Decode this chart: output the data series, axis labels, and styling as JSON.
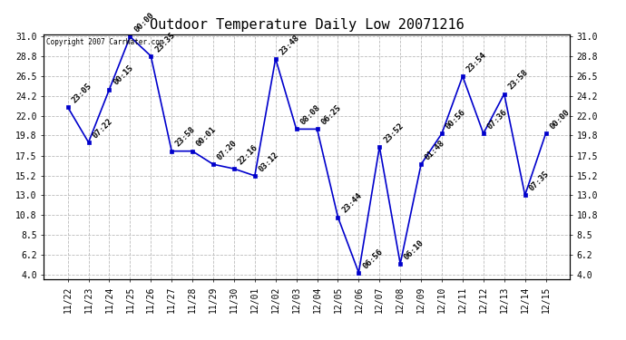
{
  "title": "Outdoor Temperature Daily Low 20071216",
  "copyright": "Copyright 2007 CarrWater.com",
  "dates": [
    "11/22",
    "11/23",
    "11/24",
    "11/25",
    "11/26",
    "11/27",
    "11/28",
    "11/29",
    "11/30",
    "12/01",
    "12/02",
    "12/03",
    "12/04",
    "12/05",
    "12/06",
    "12/07",
    "12/08",
    "12/09",
    "12/10",
    "12/11",
    "12/12",
    "12/13",
    "12/14",
    "12/15"
  ],
  "values": [
    23.0,
    19.0,
    25.0,
    31.0,
    28.8,
    18.0,
    18.0,
    16.5,
    16.0,
    15.2,
    28.5,
    20.5,
    20.5,
    10.5,
    4.2,
    18.5,
    5.2,
    16.5,
    20.0,
    26.5,
    20.0,
    24.5,
    13.0,
    20.0
  ],
  "times": [
    "23:05",
    "07:22",
    "00:15",
    "00:00",
    "23:35",
    "23:58",
    "00:01",
    "07:20",
    "22:16",
    "03:12",
    "23:48",
    "08:08",
    "06:25",
    "23:44",
    "06:56",
    "23:52",
    "06:10",
    "01:48",
    "00:56",
    "23:54",
    "07:36",
    "23:58",
    "07:35",
    "00:00"
  ],
  "line_color": "#0000cc",
  "marker_color": "#0000cc",
  "bg_color": "#ffffff",
  "grid_color": "#bbbbbb",
  "ylim_min": 4.0,
  "ylim_max": 31.0,
  "yticks": [
    4.0,
    6.2,
    8.5,
    10.8,
    13.0,
    15.2,
    17.5,
    19.8,
    22.0,
    24.2,
    26.5,
    28.8,
    31.0
  ],
  "annotation_fontsize": 6.5,
  "title_fontsize": 11,
  "tick_fontsize": 7
}
